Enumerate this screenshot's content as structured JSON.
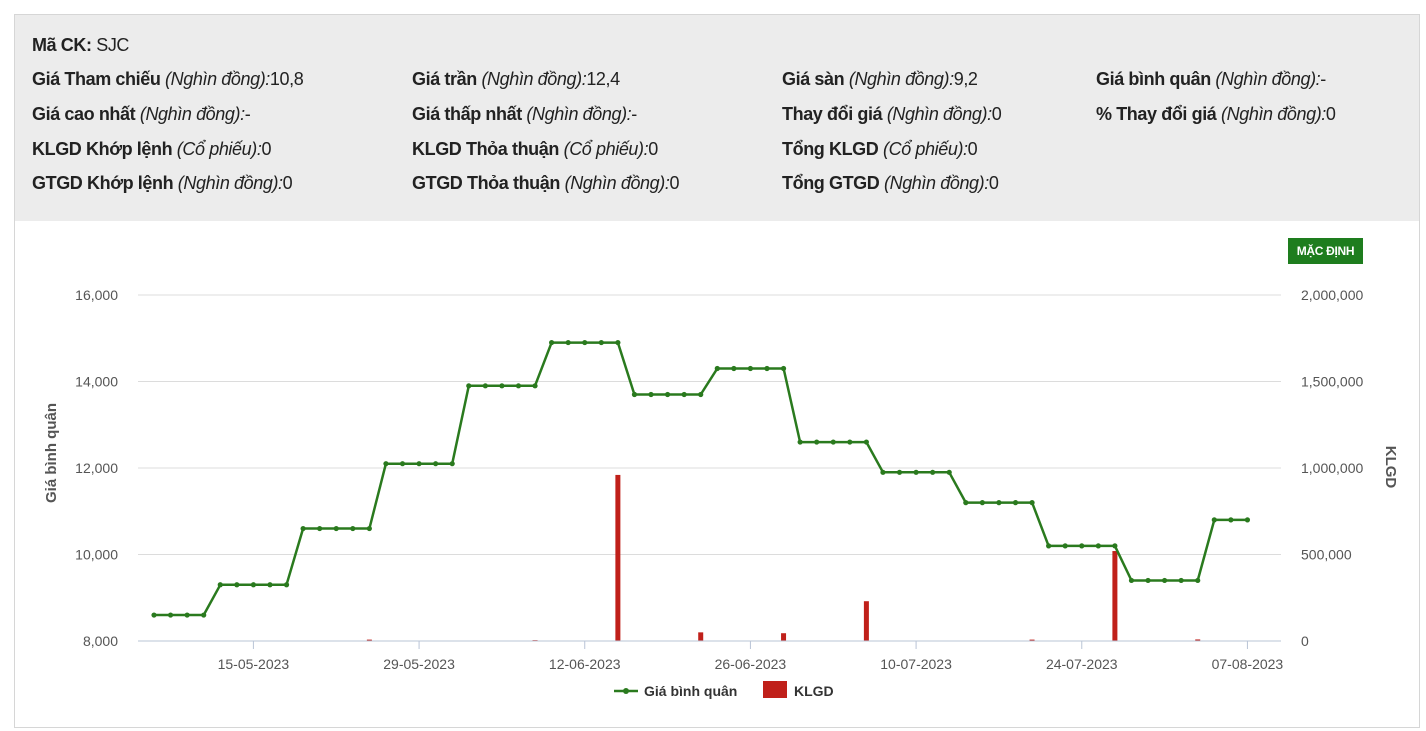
{
  "info": {
    "rows": [
      [
        {
          "label": "Mã CK:",
          "unit": "",
          "value": "SJC"
        }
      ],
      [
        {
          "label": "Giá Tham chiếu",
          "unit": "(Nghìn đồng):",
          "value": "10,8"
        },
        {
          "label": "Giá trần",
          "unit": "(Nghìn đồng):",
          "value": "12,4"
        },
        {
          "label": "Giá sàn",
          "unit": "(Nghìn đồng):",
          "value": "9,2"
        },
        {
          "label": "Giá bình quân",
          "unit": "(Nghìn đồng):",
          "value": "-"
        }
      ],
      [
        {
          "label": "Giá cao nhất",
          "unit": "(Nghìn đồng):",
          "value": "-"
        },
        {
          "label": "Giá thấp nhất",
          "unit": "(Nghìn đồng):",
          "value": "-"
        },
        {
          "label": "Thay đổi giá",
          "unit": "(Nghìn đồng):",
          "value": "0"
        },
        {
          "label": "% Thay đổi giá",
          "unit": "(Nghìn đồng):",
          "value": "0"
        }
      ],
      [
        {
          "label": "KLGD Khớp lệnh",
          "unit": "(Cổ phiếu):",
          "value": "0"
        },
        {
          "label": "KLGD Thỏa thuận",
          "unit": "(Cổ phiếu):",
          "value": "0"
        },
        {
          "label": "Tổng KLGD",
          "unit": "(Cổ phiếu):",
          "value": "0"
        }
      ],
      [
        {
          "label": "GTGD Khớp lệnh",
          "unit": "(Nghìn đồng):",
          "value": "0"
        },
        {
          "label": "GTGD Thỏa thuận",
          "unit": "(Nghìn đồng):",
          "value": "0"
        },
        {
          "label": "Tổng GTGD",
          "unit": "(Nghìn đồng):",
          "value": "0"
        }
      ]
    ]
  },
  "default_button": "MẶC ĐỊNH",
  "chart_data": {
    "type": "line+bar",
    "x_ticks": [
      "15-05-2023",
      "29-05-2023",
      "12-06-2023",
      "26-06-2023",
      "10-07-2023",
      "24-07-2023",
      "07-08-2023"
    ],
    "x_tick_index": [
      6,
      16,
      26,
      36,
      46,
      56,
      66
    ],
    "ylabel_left": "Giá bình quân",
    "ylabel_right": "KLGD",
    "yleft_ticks": [
      "8,000",
      "10,000",
      "12,000",
      "14,000",
      "16,000"
    ],
    "yleft_range": [
      8000,
      16000
    ],
    "yright_ticks": [
      "0",
      "500,000",
      "1,000,000",
      "1,500,000",
      "2,000,000"
    ],
    "yright_range": [
      0,
      2000000
    ],
    "grid": true,
    "legend_position": "bottom-center",
    "colors": {
      "line": "#2a7a1e",
      "bar": "#c0201a",
      "grid": "#dcdcdc"
    },
    "series": [
      {
        "name": "Giá bình quân",
        "type": "line",
        "values": [
          8600,
          8600,
          8600,
          8600,
          9300,
          9300,
          9300,
          9300,
          9300,
          10600,
          10600,
          10600,
          10600,
          10600,
          12100,
          12100,
          12100,
          12100,
          12100,
          13900,
          13900,
          13900,
          13900,
          13900,
          14900,
          14900,
          14900,
          14900,
          14900,
          13700,
          13700,
          13700,
          13700,
          13700,
          14300,
          14300,
          14300,
          14300,
          14300,
          12600,
          12600,
          12600,
          12600,
          12600,
          11900,
          11900,
          11900,
          11900,
          11900,
          11200,
          11200,
          11200,
          11200,
          11200,
          10200,
          10200,
          10200,
          10200,
          10200,
          9400,
          9400,
          9400,
          9400,
          9400,
          10800,
          10800,
          10800
        ]
      },
      {
        "name": "KLGD",
        "type": "bar",
        "points": [
          [
            13,
            8000
          ],
          [
            23,
            5000
          ],
          [
            28,
            960000
          ],
          [
            33,
            50000
          ],
          [
            38,
            45000
          ],
          [
            43,
            230000
          ],
          [
            53,
            8000
          ],
          [
            58,
            520000
          ],
          [
            63,
            9000
          ]
        ]
      }
    ]
  }
}
